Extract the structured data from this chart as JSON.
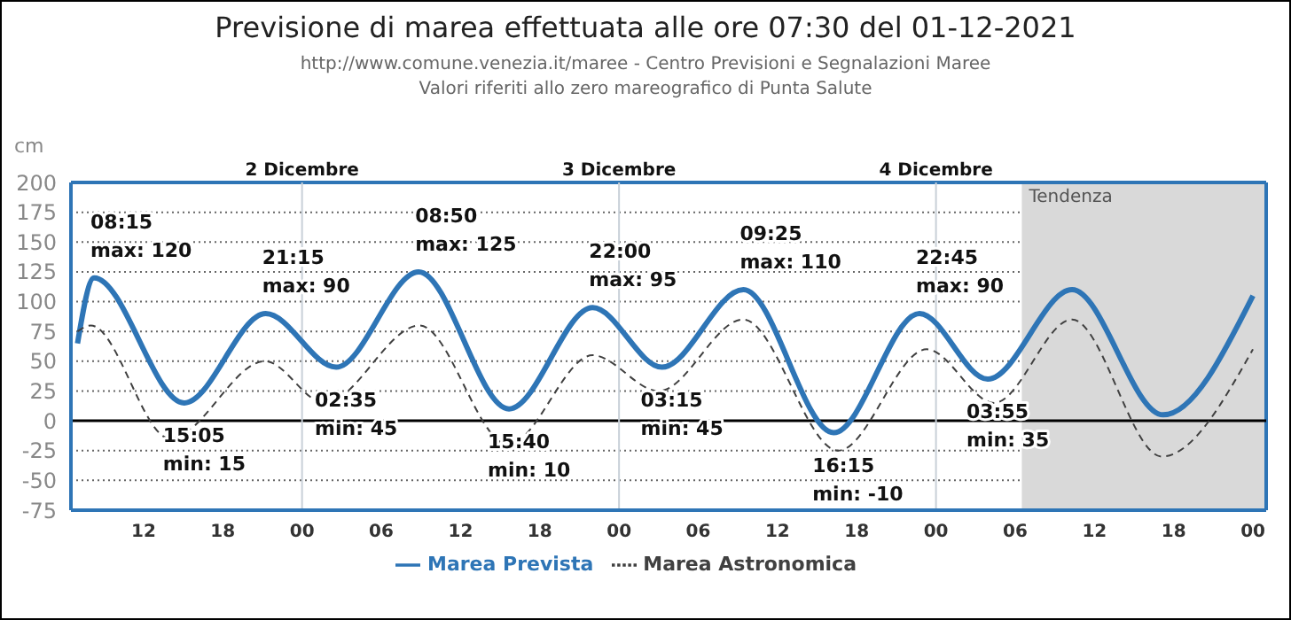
{
  "chart_data": {
    "type": "line",
    "title": "Previsione di marea effettuata alle ore 07:30 del 01-12-2021",
    "subtitle": "http://www.comune.venezia.it/maree - Centro Previsioni e Segnalazioni Maree\nValori riferiti allo zero mareografico di Punta Salute",
    "ylabel": "cm",
    "xlim": [
      6.5,
      97
    ],
    "xticks": [
      {
        "value": 12,
        "label": "12"
      },
      {
        "value": 18,
        "label": "18"
      },
      {
        "value": 24,
        "label": "00"
      },
      {
        "value": 30,
        "label": "06"
      },
      {
        "value": 36,
        "label": "12"
      },
      {
        "value": 42,
        "label": "18"
      },
      {
        "value": 48,
        "label": "00"
      },
      {
        "value": 54,
        "label": "06"
      },
      {
        "value": 60,
        "label": "12"
      },
      {
        "value": 66,
        "label": "18"
      },
      {
        "value": 72,
        "label": "00"
      },
      {
        "value": 78,
        "label": "06"
      },
      {
        "value": 84,
        "label": "12"
      },
      {
        "value": 90,
        "label": "18"
      },
      {
        "value": 96,
        "label": "00"
      }
    ],
    "ylim": [
      -75,
      200
    ],
    "yticks": [
      -75,
      -50,
      -25,
      0,
      25,
      50,
      75,
      100,
      125,
      150,
      175,
      200
    ],
    "grid": "y",
    "legend": "bottom",
    "marker": "none",
    "series": [
      {
        "name": "Marea Prevista",
        "color": "#2e75b6",
        "line_style": "solid",
        "x": [
          7,
          8.25,
          15.08,
          21.25,
          26.58,
          32.83,
          39.67,
          46,
          51.25,
          57.42,
          64.25,
          70.75,
          75.92,
          82.3,
          89.2,
          96
        ],
        "values": [
          65,
          120,
          15,
          90,
          45,
          125,
          10,
          95,
          45,
          110,
          -10,
          90,
          35,
          110,
          5,
          105
        ]
      },
      {
        "name": "Marea Astronomica",
        "color": "#404040",
        "line_style": "dashed",
        "x": [
          7,
          8,
          14,
          21.2,
          25.7,
          32.9,
          39.6,
          46,
          51,
          57.4,
          64.6,
          71.3,
          76.4,
          82.3,
          89.1,
          96
        ],
        "values": [
          75,
          80,
          -15,
          50,
          15,
          80,
          -20,
          55,
          25,
          85,
          -25,
          60,
          15,
          85,
          -30,
          60
        ]
      }
    ],
    "ref_lines": [
      {
        "axis": "y",
        "value": 0,
        "color": "#000000"
      },
      {
        "axis": "x",
        "value": 24,
        "label": "2 Dicembre",
        "color": "#c8d0d8"
      },
      {
        "axis": "x",
        "value": 48,
        "label": "3 Dicembre",
        "color": "#c8d0d8"
      },
      {
        "axis": "x",
        "value": 72,
        "label": "4 Dicembre",
        "color": "#c8d0d8"
      }
    ],
    "bands": [
      {
        "axis": "x",
        "from": 78.5,
        "to": 97,
        "label": "Tendenza",
        "color": "#d9d9d9"
      }
    ],
    "annotations": [
      {
        "text": "08:15\nmax: 120",
        "x": 8.25,
        "y": 120
      },
      {
        "text": "15:05\nmin: 15",
        "x": 15.08,
        "y": 15
      },
      {
        "text": "21:15\nmax: 90",
        "x": 21.25,
        "y": 90
      },
      {
        "text": "02:35\nmin: 45",
        "x": 26.58,
        "y": 45
      },
      {
        "text": "08:50\nmax: 125",
        "x": 32.83,
        "y": 125
      },
      {
        "text": "15:40\nmin: 10",
        "x": 39.67,
        "y": 10
      },
      {
        "text": "22:00\nmax: 95",
        "x": 46,
        "y": 95
      },
      {
        "text": "03:15\nmin: 45",
        "x": 51.25,
        "y": 45
      },
      {
        "text": "09:25\nmax: 110",
        "x": 57.42,
        "y": 110
      },
      {
        "text": "16:15\nmin: -10",
        "x": 64.25,
        "y": -10
      },
      {
        "text": "22:45\nmax: 90",
        "x": 70.75,
        "y": 90
      },
      {
        "text": "03:55\nmin: 35",
        "x": 75.92,
        "y": 35
      }
    ]
  }
}
